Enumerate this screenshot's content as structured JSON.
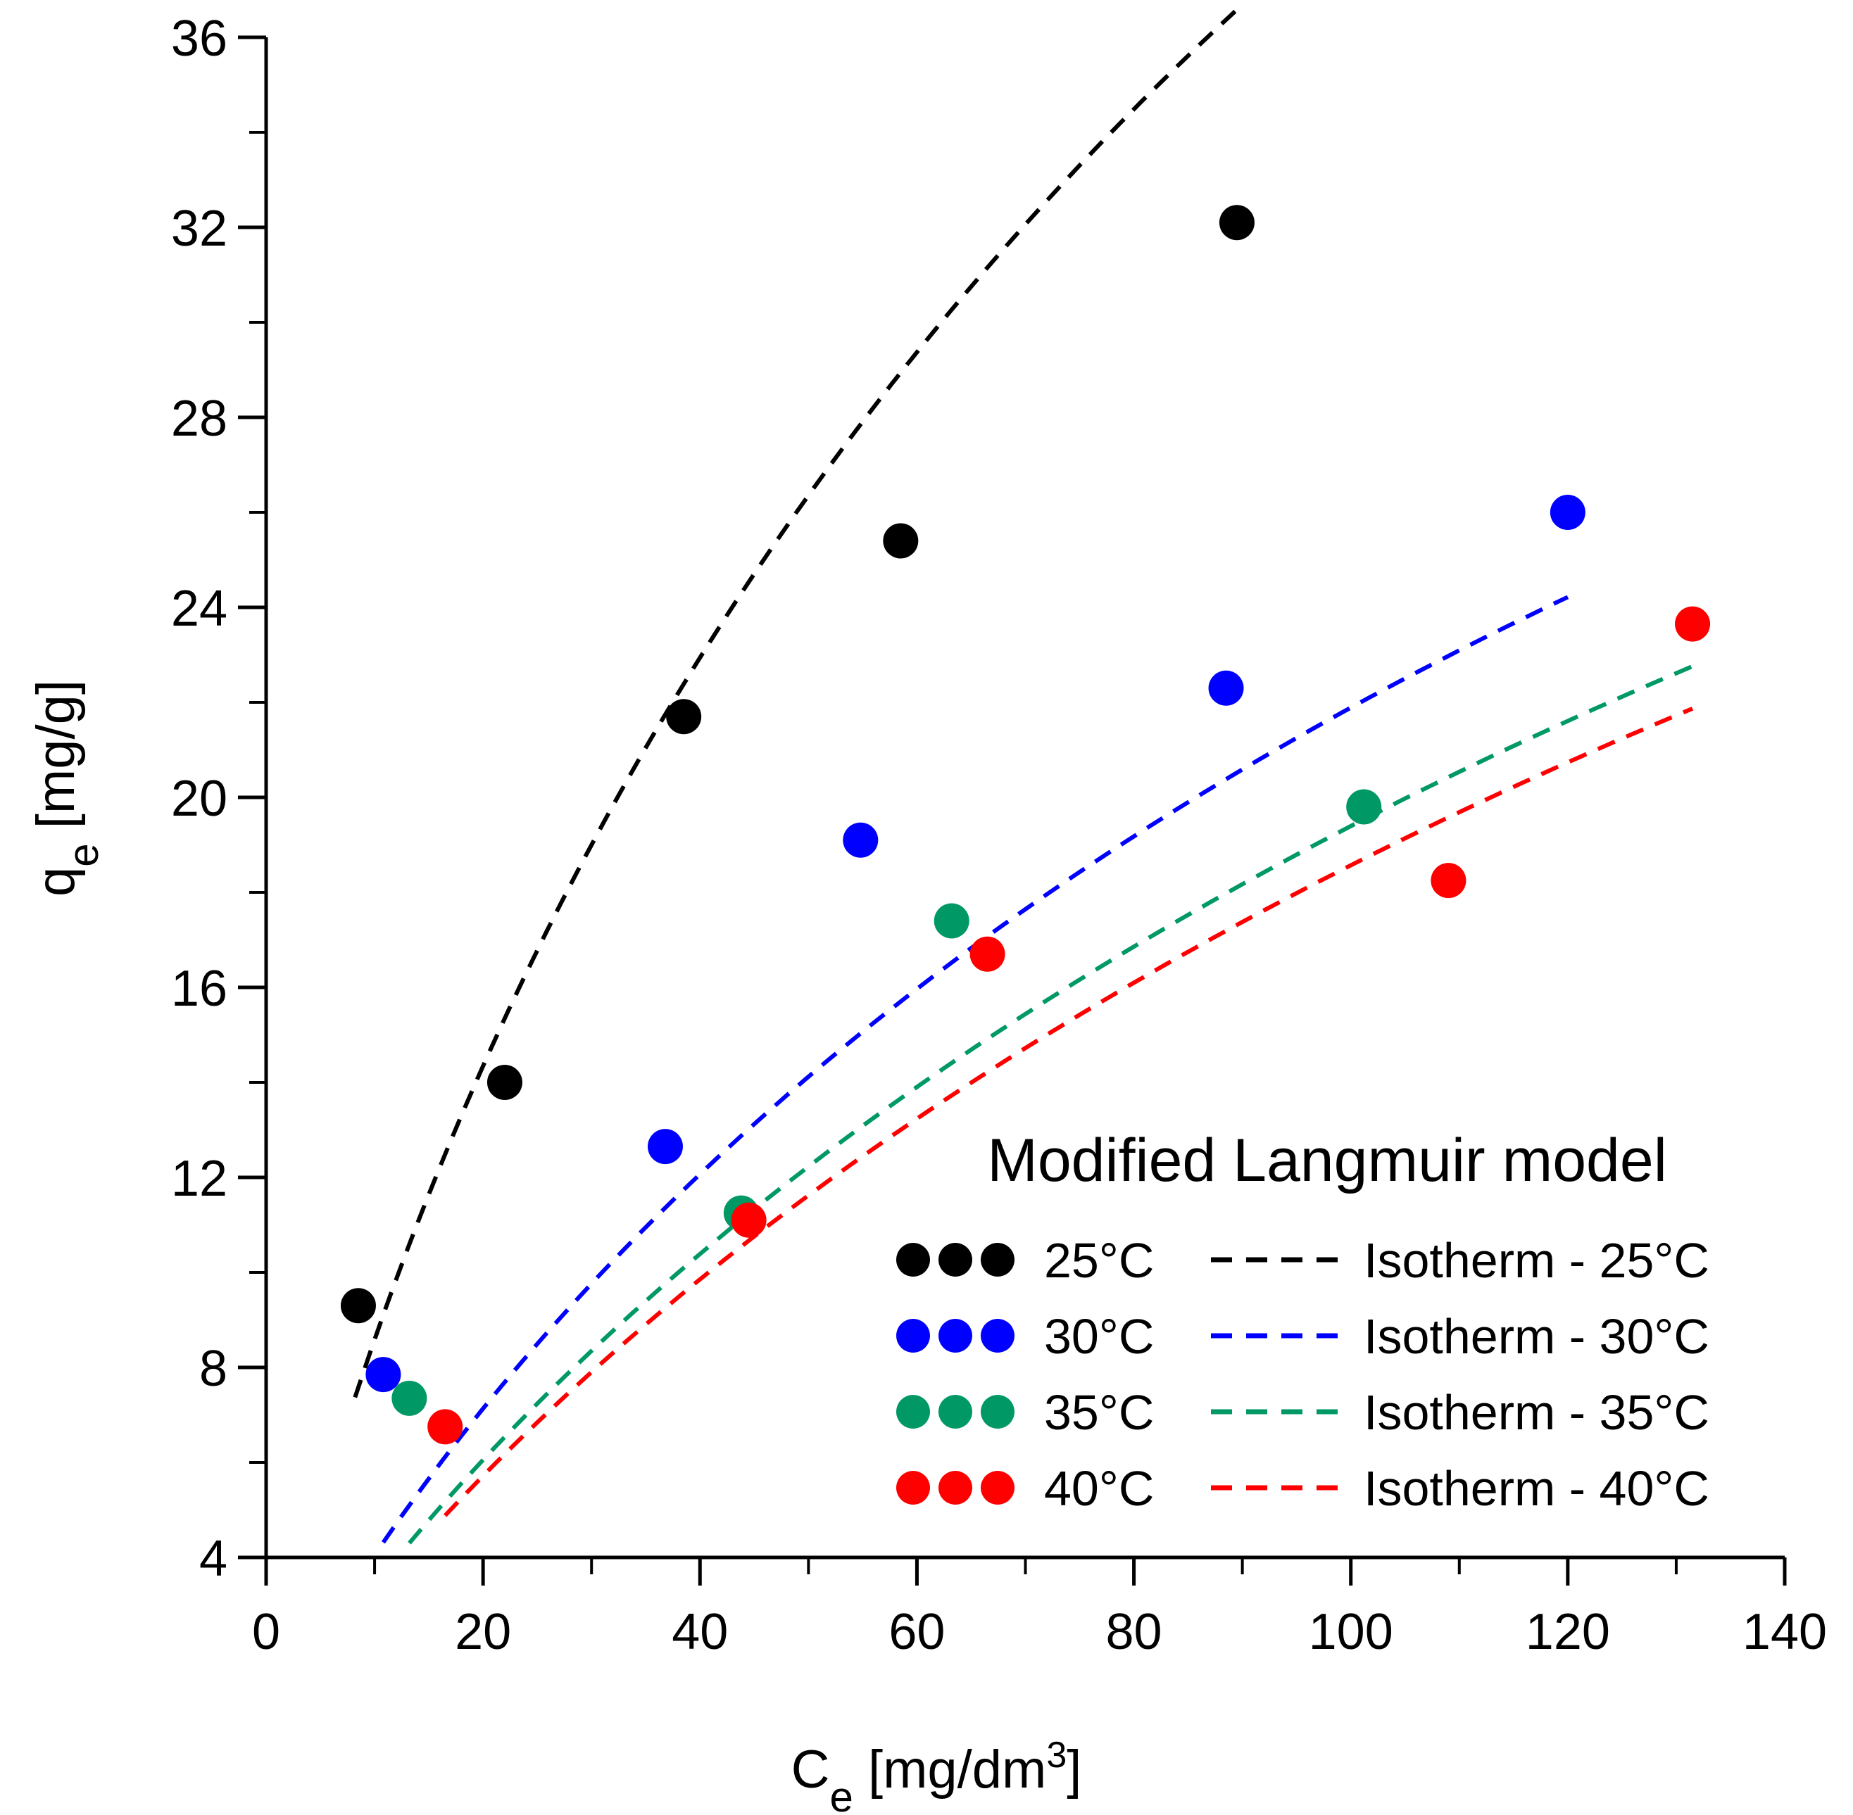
{
  "chart_data": {
    "type": "scatter",
    "title": "Modified Langmuir model",
    "xlabel": {
      "main": "C",
      "sub": "e",
      "unit_pre": " [mg/dm",
      "sup": "3",
      "unit_post": "]"
    },
    "ylabel": {
      "main": "q",
      "sub": "e",
      "unit": " [mg/g]"
    },
    "xlim": [
      0,
      140
    ],
    "ylim": [
      4,
      36
    ],
    "xticks": [
      0,
      20,
      40,
      60,
      80,
      100,
      120,
      140
    ],
    "yticks": [
      4,
      8,
      12,
      16,
      20,
      24,
      28,
      32,
      36
    ],
    "xtick_labels": [
      "0",
      "20",
      "40",
      "60",
      "80",
      "100",
      "120",
      "140"
    ],
    "ytick_labels": [
      "4",
      "8",
      "12",
      "16",
      "20",
      "24",
      "28",
      "32",
      "36"
    ],
    "legend_position": "bottom-right",
    "series": [
      {
        "name": "25°C",
        "fit_name": "Isotherm - 25°C",
        "color": "#000000",
        "x": [
          8.5,
          22,
          38.5,
          58.5,
          89.5
        ],
        "y": [
          9.3,
          14.0,
          21.7,
          25.4,
          32.1
        ],
        "fit": {
          "qmax": 95,
          "K": 0.0064,
          "n": 0.84,
          "x_range": [
            8.2,
            89.5
          ]
        }
      },
      {
        "name": "30°C",
        "fit_name": "Isotherm - 30°C",
        "color": "#0000ff",
        "x": [
          10.8,
          36.8,
          54.8,
          88.5,
          120
        ],
        "y": [
          7.85,
          12.65,
          19.1,
          22.3,
          26.0
        ],
        "fit": {
          "qmax": 60,
          "K": 0.0054,
          "n": 0.9,
          "x_range": [
            10.8,
            120
          ]
        }
      },
      {
        "name": "35°C",
        "fit_name": "Isotherm - 35°C",
        "color": "#009966",
        "x": [
          13.2,
          43.8,
          63.2,
          101.2
        ],
        "y": [
          7.35,
          11.25,
          17.4,
          19.8
        ],
        "fit": {
          "qmax": 60,
          "K": 0.0044,
          "n": 0.9,
          "x_range": [
            13.2,
            131.5
          ]
        }
      },
      {
        "name": "40°C",
        "fit_name": "Isotherm - 40°C",
        "color": "#ff0000",
        "x": [
          16.5,
          44.5,
          66.5,
          109,
          131.5
        ],
        "y": [
          6.75,
          11.1,
          16.7,
          18.25,
          23.65
        ],
        "fit": {
          "qmax": 60,
          "K": 0.0041,
          "n": 0.9,
          "x_range": [
            16.5,
            131.5
          ]
        }
      }
    ]
  }
}
